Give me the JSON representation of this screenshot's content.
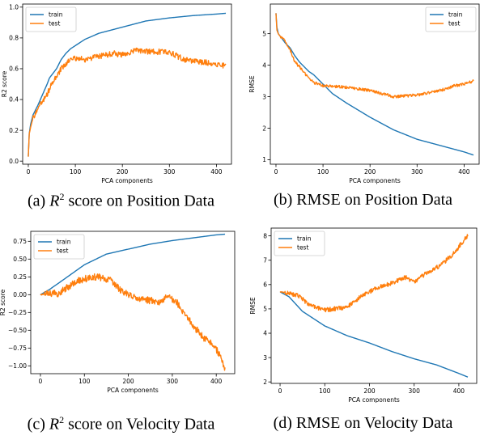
{
  "colors": {
    "train": "#1f77b4",
    "test": "#ff7f0e"
  },
  "chart_data": [
    {
      "type": "line",
      "caption": {
        "label": "(a)",
        "math": "R",
        "sup": "2",
        "rest": "score on Position Data"
      },
      "xlabel": "PCA components",
      "ylabel": "R2 score",
      "xlim": [
        -12,
        432
      ],
      "ylim": [
        -0.02,
        1.02
      ],
      "xticks": [
        0,
        100,
        200,
        300,
        400
      ],
      "yticks": [
        0.0,
        0.2,
        0.4,
        0.6,
        0.8,
        1.0
      ],
      "ytick_labels": [
        "0.0",
        "0.2",
        "0.4",
        "0.6",
        "0.8",
        "1.0"
      ],
      "legend": "top-left",
      "series": [
        {
          "name": "train",
          "x": [
            0,
            2,
            5,
            10,
            20,
            30,
            40,
            45,
            50,
            60,
            70,
            80,
            90,
            100,
            120,
            150,
            200,
            250,
            300,
            350,
            400,
            420
          ],
          "values": [
            0.03,
            0.18,
            0.24,
            0.3,
            0.36,
            0.43,
            0.5,
            0.54,
            0.56,
            0.6,
            0.66,
            0.7,
            0.73,
            0.75,
            0.79,
            0.83,
            0.87,
            0.91,
            0.93,
            0.945,
            0.955,
            0.96
          ],
          "noise": 0
        },
        {
          "name": "test",
          "x": [
            0,
            2,
            5,
            10,
            20,
            30,
            40,
            45,
            50,
            60,
            70,
            80,
            90,
            100,
            120,
            150,
            180,
            200,
            230,
            260,
            300,
            330,
            350,
            380,
            400,
            420
          ],
          "values": [
            0.03,
            0.18,
            0.22,
            0.28,
            0.33,
            0.39,
            0.43,
            0.47,
            0.5,
            0.55,
            0.6,
            0.63,
            0.66,
            0.67,
            0.66,
            0.68,
            0.7,
            0.69,
            0.72,
            0.71,
            0.71,
            0.66,
            0.65,
            0.64,
            0.63,
            0.62
          ],
          "noise": 0.018
        }
      ]
    },
    {
      "type": "line",
      "caption": {
        "label": "(b)",
        "math": "",
        "sup": "",
        "rest": "RMSE on Position Data"
      },
      "xlabel": "PCA components",
      "ylabel": "RMSE",
      "xlim": [
        -12,
        432
      ],
      "ylim": [
        0.86,
        5.94
      ],
      "xticks": [
        0,
        100,
        200,
        300,
        400
      ],
      "yticks": [
        1,
        2,
        3,
        4,
        5
      ],
      "ytick_labels": [
        "1",
        "2",
        "3",
        "4",
        "5"
      ],
      "legend": "top-right",
      "series": [
        {
          "name": "train",
          "x": [
            0,
            2,
            5,
            10,
            20,
            30,
            40,
            50,
            60,
            70,
            80,
            90,
            100,
            120,
            150,
            200,
            250,
            300,
            350,
            400,
            420
          ],
          "values": [
            5.65,
            5.2,
            5.0,
            4.9,
            4.7,
            4.55,
            4.3,
            4.1,
            3.95,
            3.8,
            3.7,
            3.55,
            3.4,
            3.1,
            2.8,
            2.35,
            1.95,
            1.65,
            1.45,
            1.25,
            1.15
          ],
          "noise": 0
        },
        {
          "name": "test",
          "x": [
            0,
            2,
            5,
            10,
            20,
            30,
            40,
            50,
            60,
            70,
            80,
            100,
            150,
            200,
            250,
            300,
            330,
            350,
            380,
            400,
            420
          ],
          "values": [
            5.65,
            5.1,
            5.0,
            4.9,
            4.75,
            4.5,
            4.1,
            3.95,
            3.75,
            3.6,
            3.45,
            3.35,
            3.3,
            3.2,
            3.0,
            3.05,
            3.15,
            3.2,
            3.35,
            3.4,
            3.5
          ],
          "noise": 0.045
        }
      ]
    },
    {
      "type": "line",
      "caption": {
        "label": "(c)",
        "math": "R",
        "sup": "2",
        "rest": "score on Velocity Data"
      },
      "xlabel": "PCA components",
      "ylabel": "R2 score",
      "xlim": [
        -22,
        442
      ],
      "ylim": [
        -1.11,
        0.89
      ],
      "xticks": [
        0,
        100,
        200,
        300,
        400
      ],
      "yticks": [
        0.75,
        0.5,
        0.25,
        0.0,
        -0.25,
        -0.5,
        -0.75,
        -1.0
      ],
      "ytick_labels": [
        "0.75",
        "0.50",
        "0.25",
        "0.00",
        "−0.25",
        "−0.50",
        "−0.75",
        "−1.00"
      ],
      "legend": "top-left",
      "series": [
        {
          "name": "train",
          "x": [
            0,
            20,
            50,
            100,
            150,
            200,
            250,
            300,
            350,
            400,
            420
          ],
          "values": [
            0.0,
            0.07,
            0.2,
            0.42,
            0.57,
            0.64,
            0.71,
            0.76,
            0.8,
            0.84,
            0.85
          ],
          "noise": 0
        },
        {
          "name": "test",
          "x": [
            0,
            20,
            40,
            60,
            80,
            100,
            120,
            140,
            160,
            180,
            200,
            220,
            250,
            270,
            290,
            310,
            330,
            350,
            370,
            390,
            410,
            420
          ],
          "values": [
            0.0,
            0.02,
            0.02,
            0.1,
            0.18,
            0.22,
            0.25,
            0.24,
            0.2,
            0.07,
            0.0,
            -0.06,
            -0.08,
            -0.1,
            -0.03,
            -0.11,
            -0.28,
            -0.45,
            -0.6,
            -0.7,
            -0.85,
            -1.06
          ],
          "noise": 0.05
        }
      ]
    },
    {
      "type": "line",
      "caption": {
        "label": "(d)",
        "math": "",
        "sup": "",
        "rest": "RMSE on Velocity Data"
      },
      "xlabel": "PCA components",
      "ylabel": "RMSE",
      "xlim": [
        -20,
        440
      ],
      "ylim": [
        1.94,
        8.32
      ],
      "xticks": [
        0,
        100,
        200,
        300,
        400
      ],
      "yticks": [
        2,
        3,
        4,
        5,
        6,
        7,
        8
      ],
      "ytick_labels": [
        "2",
        "3",
        "4",
        "5",
        "6",
        "7",
        "8"
      ],
      "legend": "top-left",
      "series": [
        {
          "name": "train",
          "x": [
            0,
            20,
            50,
            100,
            150,
            200,
            250,
            300,
            350,
            400,
            420
          ],
          "values": [
            5.7,
            5.5,
            4.9,
            4.3,
            3.9,
            3.6,
            3.25,
            2.95,
            2.7,
            2.35,
            2.2
          ],
          "noise": 0
        },
        {
          "name": "test",
          "x": [
            0,
            20,
            40,
            60,
            80,
            100,
            120,
            140,
            160,
            180,
            200,
            220,
            250,
            280,
            300,
            330,
            360,
            390,
            410,
            420
          ],
          "values": [
            5.7,
            5.65,
            5.55,
            5.25,
            5.05,
            4.95,
            5.0,
            5.05,
            5.2,
            5.5,
            5.7,
            5.9,
            6.05,
            6.3,
            6.1,
            6.5,
            6.8,
            7.3,
            7.8,
            8.0
          ],
          "noise": 0.09
        }
      ]
    }
  ]
}
